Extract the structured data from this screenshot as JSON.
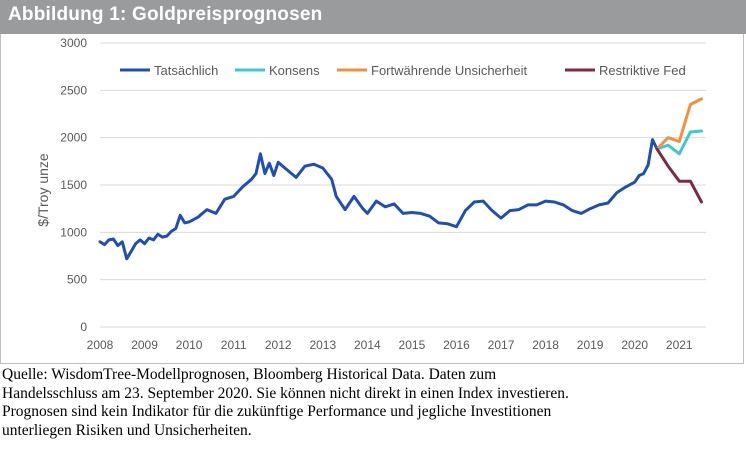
{
  "title": "Abbildung 1: Goldpreisprognosen",
  "source_lines": [
    "Quelle: WisdomTree-Modellprognosen, Bloomberg Historical Data. Daten zum",
    "Handelsschluss am 23. September 2020. Sie können nicht direkt in einen Index investieren.",
    "Prognosen sind kein Indikator für die zukünftige Performance und jegliche Investitionen",
    "unterliegen Risiken und Unsicherheiten."
  ],
  "colors": {
    "tatsaechlich": "#1f4fb3",
    "konsens": "#3cc8d0",
    "fortwaehrend": "#f0923a",
    "restriktiv": "#7b2a4a",
    "grid": "#d9d9d9"
  },
  "chart_data": {
    "type": "line",
    "title": "",
    "xlabel": "",
    "ylabel": "$/Troy unze",
    "xlim": [
      2008.0,
      2021.6
    ],
    "ylim": [
      0,
      3000
    ],
    "yticks": [
      "0",
      "500",
      "1000",
      "1500",
      "2000",
      "2500",
      "3000"
    ],
    "xticks": [
      "2008",
      "2009",
      "2010",
      "2011",
      "2012",
      "2013",
      "2014",
      "2015",
      "2016",
      "2017",
      "2018",
      "2019",
      "2020",
      "2021"
    ],
    "grid": "horizontal",
    "legend_position": "top",
    "series": [
      {
        "name": "Tatsächlich",
        "color_key": "tatsaechlich",
        "x": [
          2008.0,
          2008.1,
          2008.2,
          2008.3,
          2008.4,
          2008.5,
          2008.6,
          2008.7,
          2008.8,
          2008.9,
          2009.0,
          2009.1,
          2009.2,
          2009.3,
          2009.4,
          2009.5,
          2009.6,
          2009.7,
          2009.8,
          2009.9,
          2010.0,
          2010.2,
          2010.4,
          2010.6,
          2010.8,
          2011.0,
          2011.2,
          2011.4,
          2011.5,
          2011.6,
          2011.7,
          2011.8,
          2011.9,
          2012.0,
          2012.2,
          2012.4,
          2012.6,
          2012.8,
          2013.0,
          2013.2,
          2013.3,
          2013.5,
          2013.7,
          2013.9,
          2014.0,
          2014.2,
          2014.4,
          2014.6,
          2014.8,
          2015.0,
          2015.2,
          2015.4,
          2015.6,
          2015.8,
          2016.0,
          2016.2,
          2016.4,
          2016.6,
          2016.8,
          2017.0,
          2017.2,
          2017.4,
          2017.6,
          2017.8,
          2018.0,
          2018.2,
          2018.4,
          2018.6,
          2018.8,
          2019.0,
          2019.2,
          2019.4,
          2019.6,
          2019.8,
          2020.0,
          2020.1,
          2020.2,
          2020.3,
          2020.4,
          2020.5
        ],
        "values": [
          900,
          870,
          920,
          930,
          860,
          900,
          720,
          800,
          880,
          920,
          880,
          940,
          920,
          980,
          950,
          960,
          1010,
          1040,
          1180,
          1100,
          1110,
          1160,
          1240,
          1200,
          1350,
          1380,
          1480,
          1560,
          1620,
          1830,
          1620,
          1730,
          1600,
          1740,
          1660,
          1580,
          1700,
          1720,
          1680,
          1560,
          1380,
          1240,
          1380,
          1250,
          1200,
          1330,
          1270,
          1300,
          1200,
          1210,
          1200,
          1170,
          1100,
          1090,
          1060,
          1230,
          1320,
          1330,
          1230,
          1150,
          1230,
          1240,
          1290,
          1290,
          1330,
          1320,
          1290,
          1230,
          1200,
          1250,
          1290,
          1310,
          1420,
          1480,
          1530,
          1600,
          1620,
          1710,
          1980,
          1880
        ]
      },
      {
        "name": "Konsens",
        "color_key": "konsens",
        "x": [
          2020.5,
          2020.75,
          2021.0,
          2021.25,
          2021.5
        ],
        "values": [
          1880,
          1920,
          1830,
          2060,
          2070
        ]
      },
      {
        "name": "Fortwährende Unsicherheit",
        "color_key": "fortwaehrend",
        "x": [
          2020.5,
          2020.75,
          2021.0,
          2021.25,
          2021.5
        ],
        "values": [
          1880,
          2000,
          1960,
          2350,
          2410
        ]
      },
      {
        "name": "Restriktive Fed",
        "color_key": "restriktiv",
        "x": [
          2020.5,
          2020.75,
          2021.0,
          2021.25,
          2021.5
        ],
        "values": [
          1880,
          1700,
          1540,
          1540,
          1320
        ]
      }
    ]
  }
}
